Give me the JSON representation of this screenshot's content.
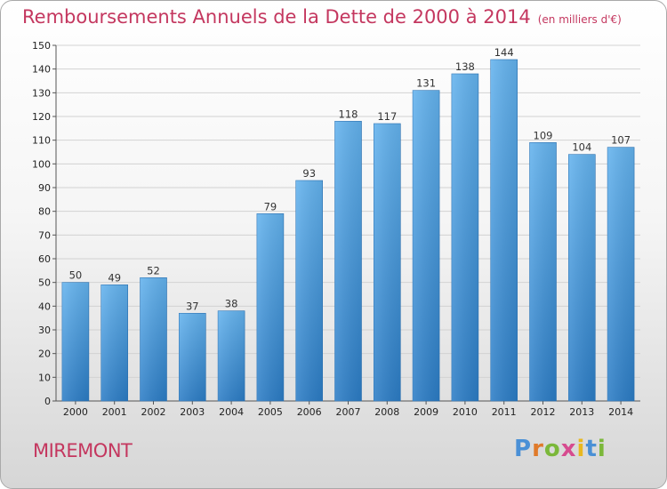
{
  "chart_data": {
    "type": "bar",
    "title": "Remboursements Annuels de la Dette de 2000 à 2014",
    "unit": "(en milliers d'€)",
    "categories": [
      "2000",
      "2001",
      "2002",
      "2003",
      "2004",
      "2005",
      "2006",
      "2007",
      "2008",
      "2009",
      "2010",
      "2011",
      "2012",
      "2013",
      "2014"
    ],
    "values": [
      50,
      49,
      52,
      37,
      38,
      79,
      93,
      118,
      117,
      131,
      138,
      144,
      109,
      104,
      107
    ],
    "ylim": [
      0,
      150
    ],
    "yticks": [
      0,
      10,
      20,
      30,
      40,
      50,
      60,
      70,
      80,
      90,
      100,
      110,
      120,
      130,
      140,
      150
    ],
    "xlabel": "",
    "ylabel": "",
    "grid": true,
    "bar_color": "#4a9fe0"
  },
  "footer": {
    "commune": "MIREMONT",
    "brand_letters": [
      "P",
      "r",
      "o",
      "x",
      "i",
      "t",
      "i"
    ],
    "brand_colors": [
      "#4a90d6",
      "#e07a2a",
      "#7bb83a",
      "#d64b8f",
      "#e8b820",
      "#4a90d6",
      "#7bb83a"
    ]
  }
}
